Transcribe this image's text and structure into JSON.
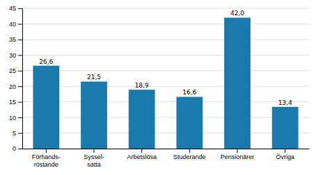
{
  "chart_data": {
    "type": "bar",
    "categories": [
      "Förhands-\nröstande",
      "Syssel-\nsatta",
      "Arbetslösa",
      "Studerande",
      "Pensionärer",
      "Övriga"
    ],
    "values": [
      26.6,
      21.5,
      18.9,
      16.6,
      42.0,
      13.4
    ],
    "value_labels": [
      "26,6",
      "21,5",
      "18,9",
      "16,6",
      "42,0",
      "13,4"
    ],
    "data_labels": true,
    "color": "#1a7aad",
    "ylim": [
      0,
      45
    ],
    "yticks": [
      0,
      5,
      10,
      15,
      20,
      25,
      30,
      35,
      40,
      45
    ],
    "grid": true
  }
}
